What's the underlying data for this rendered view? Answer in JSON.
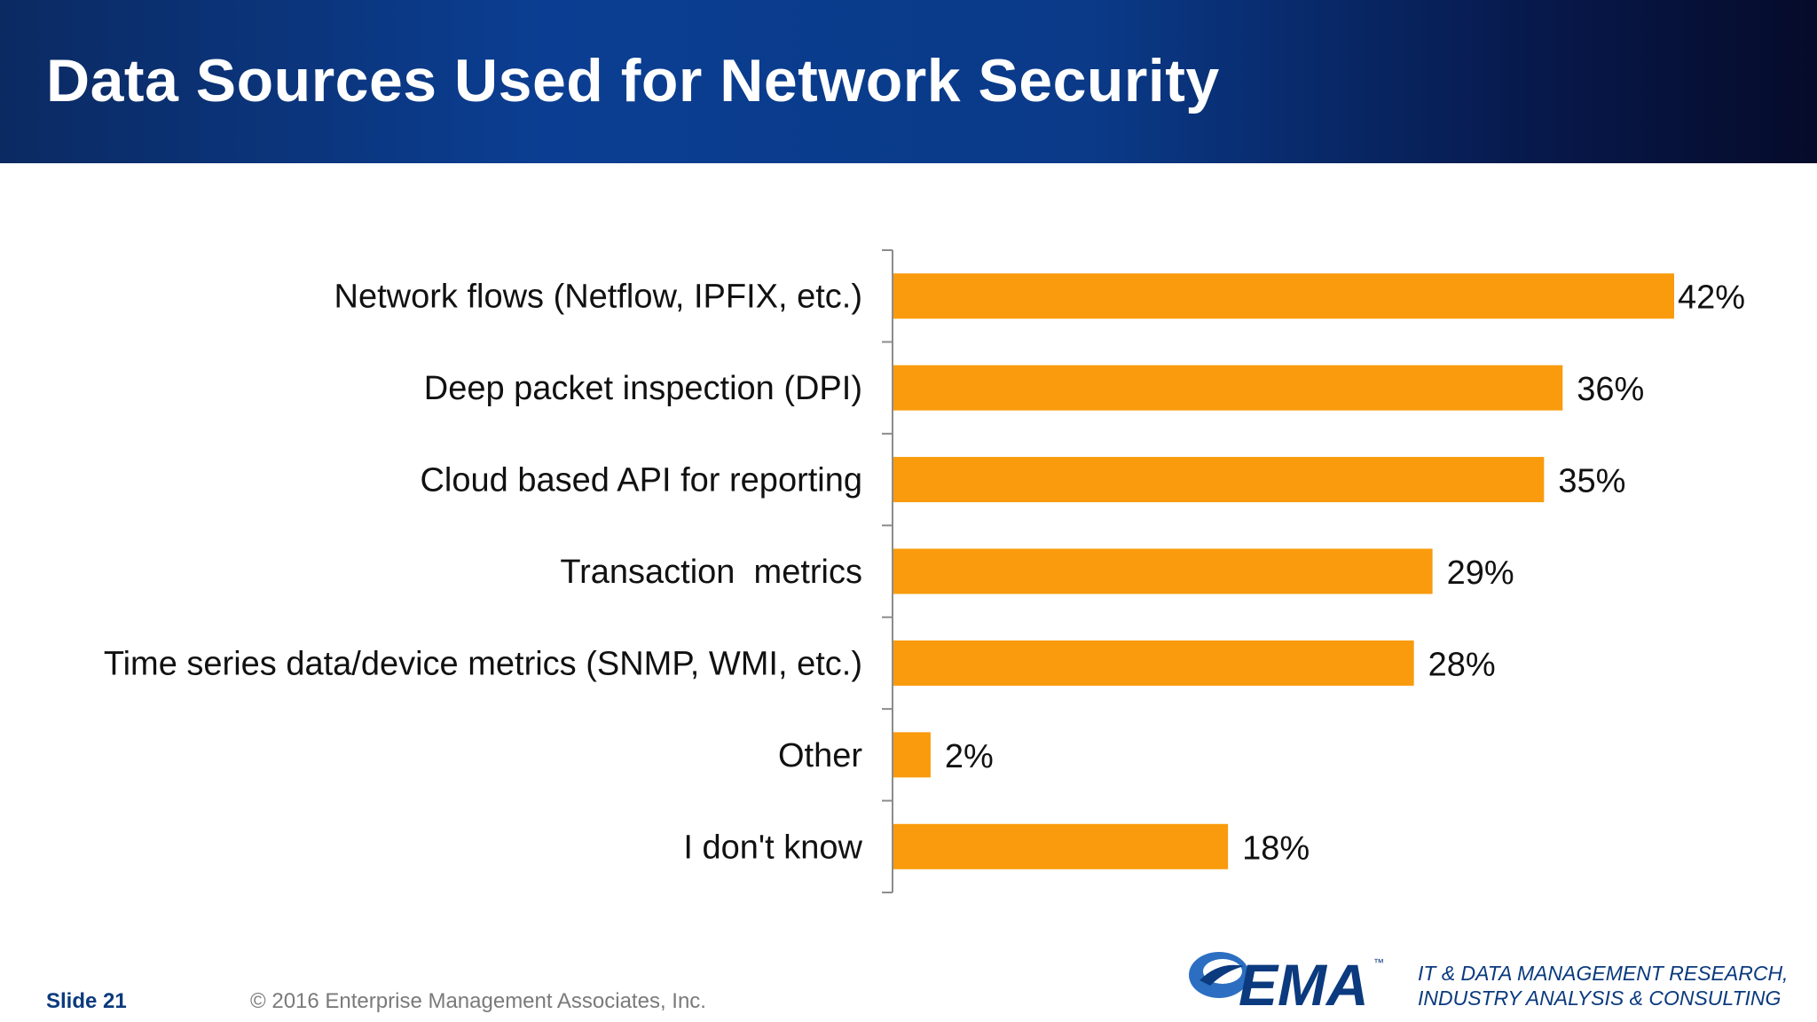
{
  "title": "Data Sources Used for Network Security",
  "colors": {
    "bar": "#f99b0c",
    "header_dark": "#0b2a62",
    "brand_blue": "#0b3a7e",
    "axis": "#8c8c8c"
  },
  "chart_data": {
    "type": "bar",
    "orientation": "horizontal",
    "categories": [
      "Network flows (Netflow, IPFIX, etc.)",
      "Deep packet inspection (DPI)",
      "Cloud based API for reporting",
      "Transaction  metrics",
      "Time series data/device metrics (SNMP, WMI, etc.)",
      "Other",
      "I don't know"
    ],
    "values": [
      42,
      36,
      35,
      29,
      28,
      2,
      18
    ],
    "data_labels": [
      "42%",
      "36%",
      "35%",
      "29%",
      "28%",
      "2%",
      "18%"
    ],
    "xlim": [
      0,
      42
    ],
    "grid": false,
    "legend": "none"
  },
  "footer": {
    "slide": "Slide 21",
    "copyright": "© 2016 Enterprise Management Associates, Inc."
  },
  "logo": {
    "text": "EMA",
    "tm": "™",
    "icon": "ema-e-swoosh-logo"
  },
  "tagline": {
    "line1": "IT & DATA MANAGEMENT RESEARCH,",
    "line2": "INDUSTRY ANALYSIS & CONSULTING"
  }
}
